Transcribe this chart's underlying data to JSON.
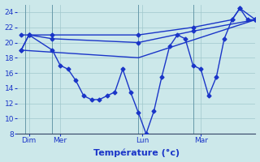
{
  "background_color": "#cce8ea",
  "grid_color": "#a0c8cc",
  "line_color": "#1a35c8",
  "marker_style": "D",
  "marker_size": 2.5,
  "linewidth": 1.0,
  "ylim": [
    8,
    25
  ],
  "yticks": [
    8,
    10,
    12,
    14,
    16,
    18,
    20,
    22,
    24
  ],
  "xlabel": "Température (°c)",
  "xlabel_fontsize": 8,
  "tick_fontsize": 6.5,
  "xtick_labels": [
    "Dim",
    "Mer",
    "Lun",
    "Mar"
  ],
  "vline_positions": [
    0.5,
    4.0,
    15.0,
    22.0
  ],
  "xlim": [
    -0.5,
    30
  ],
  "line1": {
    "x": [
      0,
      1,
      4,
      15,
      22,
      27,
      28,
      30
    ],
    "y": [
      19.0,
      21.0,
      21.0,
      21.0,
      22.0,
      23.0,
      24.5,
      23.0
    ]
  },
  "line2": {
    "x": [
      0,
      1,
      4,
      15,
      22,
      30
    ],
    "y": [
      19.0,
      21.0,
      20.5,
      20.0,
      21.5,
      23.0
    ]
  },
  "line3": {
    "x": [
      0,
      15,
      30
    ],
    "y": [
      19.0,
      18.0,
      23.0
    ]
  },
  "line4": {
    "x": [
      0,
      1,
      4,
      5,
      6,
      7,
      8,
      9,
      10,
      11,
      12,
      13,
      14,
      15,
      16,
      17,
      18,
      19,
      20,
      21,
      22,
      23,
      24,
      25,
      26,
      27,
      28,
      29,
      30
    ],
    "y": [
      21.0,
      21.0,
      19.0,
      17.0,
      16.5,
      15.0,
      13.0,
      12.5,
      12.5,
      13.0,
      13.5,
      16.5,
      13.5,
      10.8,
      8.0,
      11.0,
      15.5,
      19.5,
      21.0,
      20.5,
      17.0,
      16.5,
      13.0,
      15.5,
      20.5,
      23.0,
      24.5,
      23.0,
      23.0
    ]
  }
}
